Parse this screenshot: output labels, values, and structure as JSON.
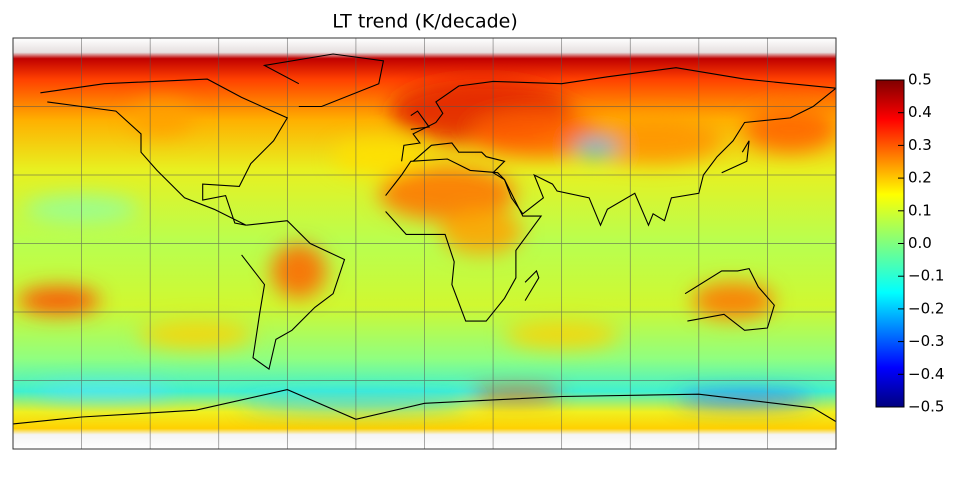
{
  "title": "LT trend (K/decade)",
  "colorbar": {
    "min": -0.5,
    "max": 0.5,
    "ticks": [
      {
        "value": -0.5,
        "label": "−0.5"
      },
      {
        "value": -0.4,
        "label": "−0.4"
      },
      {
        "value": -0.3,
        "label": "−0.3"
      },
      {
        "value": -0.2,
        "label": "−0.2"
      },
      {
        "value": -0.1,
        "label": "−0.1"
      },
      {
        "value": 0,
        "label": "0.0"
      },
      0.1,
      0.2,
      0.3,
      0.4,
      0.5
    ]
  }
}
